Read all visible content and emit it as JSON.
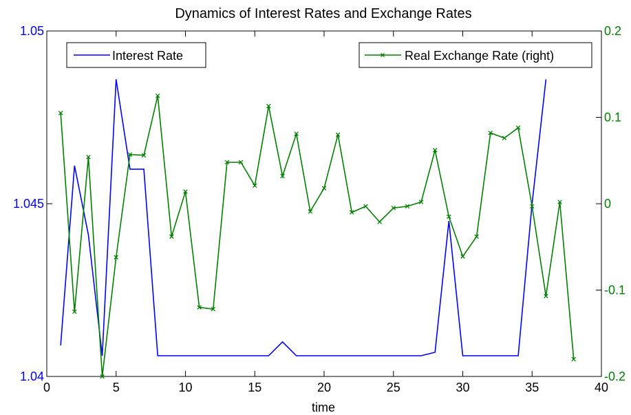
{
  "chart_data": {
    "type": "line",
    "title": "Dynamics of Interest Rates and Exchange Rates",
    "xlabel": "time",
    "xlim": [
      0,
      40
    ],
    "xticks": [
      0,
      5,
      10,
      15,
      20,
      25,
      30,
      35,
      40
    ],
    "y_left": {
      "lim": [
        1.04,
        1.05
      ],
      "ticks": [
        1.04,
        1.045,
        1.05
      ],
      "tick_labels": [
        "1.04",
        "1.045",
        "1.05"
      ],
      "color": "#0000ff"
    },
    "y_right": {
      "lim": [
        -0.2,
        0.2
      ],
      "ticks": [
        -0.2,
        -0.1,
        0,
        0.1,
        0.2
      ],
      "tick_labels": [
        "-0.2",
        "-0.1",
        "0",
        "0.1",
        "0.2"
      ],
      "color": "#008000"
    },
    "grid": false,
    "series": [
      {
        "name": "Interest Rate",
        "axis": "left",
        "color": "#0000ff",
        "marker": "none",
        "legend_position": "top-left",
        "x": [
          1,
          2,
          3,
          4,
          5,
          6,
          7,
          8,
          9,
          10,
          11,
          12,
          13,
          14,
          15,
          16,
          17,
          18,
          19,
          20,
          21,
          22,
          23,
          24,
          25,
          26,
          27,
          28,
          29,
          30,
          31,
          32,
          33,
          34,
          35,
          36
        ],
        "y": [
          1.0409,
          1.0461,
          1.0441,
          1.0406,
          1.0486,
          1.046,
          1.046,
          1.0406,
          1.0406,
          1.0406,
          1.0406,
          1.0406,
          1.0406,
          1.0406,
          1.0406,
          1.0406,
          1.041,
          1.0406,
          1.0406,
          1.0406,
          1.0406,
          1.0406,
          1.0406,
          1.0406,
          1.0406,
          1.0406,
          1.0406,
          1.0407,
          1.0445,
          1.0406,
          1.0406,
          1.0406,
          1.0406,
          1.0406,
          1.045,
          1.0486
        ]
      },
      {
        "name": "Real Exchange Rate (right)",
        "axis": "right",
        "color": "#008000",
        "marker": "x",
        "legend_position": "top-right",
        "x": [
          1,
          2,
          3,
          4,
          5,
          6,
          7,
          8,
          9,
          10,
          11,
          12,
          13,
          14,
          15,
          16,
          17,
          18,
          19,
          20,
          21,
          22,
          23,
          24,
          25,
          26,
          27,
          28,
          29,
          30,
          31,
          32,
          33,
          34,
          35,
          36,
          37,
          38
        ],
        "y": [
          0.105,
          -0.125,
          0.054,
          -0.2,
          -0.062,
          0.057,
          0.056,
          0.125,
          -0.038,
          0.014,
          -0.12,
          -0.122,
          0.048,
          0.048,
          0.021,
          0.113,
          0.032,
          0.081,
          -0.009,
          0.018,
          0.08,
          -0.01,
          -0.003,
          -0.021,
          -0.005,
          -0.003,
          0.002,
          0.062,
          -0.015,
          -0.061,
          -0.038,
          0.082,
          0.076,
          0.088,
          -0.003,
          -0.107,
          0.002,
          -0.18
        ]
      }
    ]
  }
}
